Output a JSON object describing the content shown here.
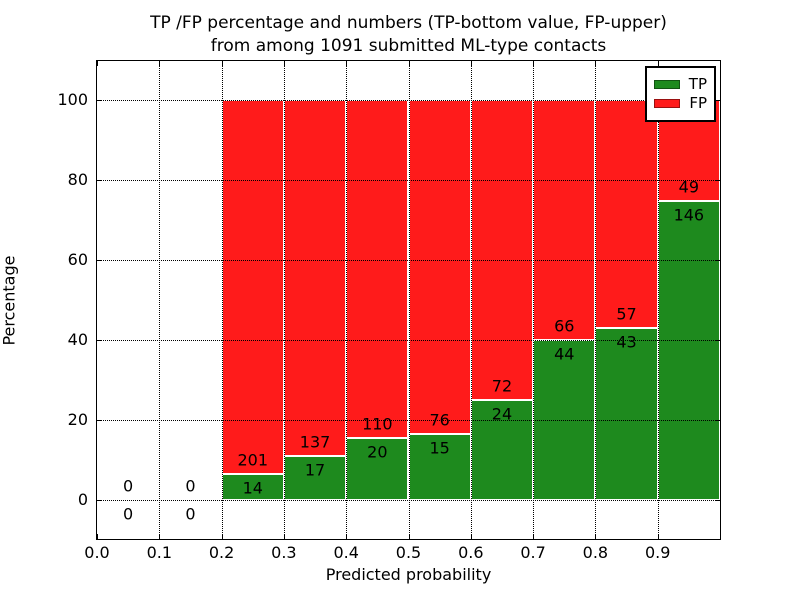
{
  "title_line1": "TP /FP percentage and numbers (TP-bottom value, FP-upper)",
  "title_line2": "from among 1091 submitted ML-type contacts",
  "total_contacts": 1091,
  "chart_data": {
    "type": "bar",
    "stacked": true,
    "title": "TP /FP percentage and numbers (TP-bottom value, FP-upper) from among 1091 submitted ML-type contacts",
    "xlabel": "Predicted probability",
    "ylabel": "Percentage",
    "x_tick_labels": [
      "0.0",
      "0.1",
      "0.2",
      "0.3",
      "0.4",
      "0.5",
      "0.6",
      "0.7",
      "0.8",
      "0.9"
    ],
    "x_tick_values": [
      0.0,
      0.1,
      0.2,
      0.3,
      0.4,
      0.5,
      0.6,
      0.7,
      0.8,
      0.9
    ],
    "y_tick_values": [
      0,
      20,
      40,
      60,
      80,
      100
    ],
    "xlim": [
      0.0,
      1.0
    ],
    "ylim": [
      -9.75,
      110
    ],
    "grid": true,
    "bin_width": 0.1,
    "categories": [
      "0.0-0.1",
      "0.1-0.2",
      "0.2-0.3",
      "0.3-0.4",
      "0.4-0.5",
      "0.5-0.6",
      "0.6-0.7",
      "0.7-0.8",
      "0.8-0.9",
      "0.9-1.0"
    ],
    "bins": [
      {
        "x_start": 0.0,
        "tp": 0,
        "fp": 0
      },
      {
        "x_start": 0.1,
        "tp": 0,
        "fp": 0
      },
      {
        "x_start": 0.2,
        "tp": 14,
        "fp": 201
      },
      {
        "x_start": 0.3,
        "tp": 17,
        "fp": 137
      },
      {
        "x_start": 0.4,
        "tp": 20,
        "fp": 110
      },
      {
        "x_start": 0.5,
        "tp": 15,
        "fp": 76
      },
      {
        "x_start": 0.6,
        "tp": 24,
        "fp": 72
      },
      {
        "x_start": 0.7,
        "tp": 44,
        "fp": 66
      },
      {
        "x_start": 0.8,
        "tp": 43,
        "fp": 57
      },
      {
        "x_start": 0.9,
        "tp": 146,
        "fp": 49
      }
    ],
    "series": [
      {
        "name": "TP",
        "color": "#1e8a1e",
        "values": [
          0,
          0,
          14,
          17,
          20,
          15,
          24,
          44,
          43,
          146
        ]
      },
      {
        "name": "FP",
        "color": "#ff1b1b",
        "values": [
          0,
          0,
          201,
          137,
          110,
          76,
          72,
          66,
          57,
          49
        ]
      }
    ],
    "legend": {
      "position": "upper right",
      "entries": [
        {
          "label": "TP",
          "color": "#1e8a1e"
        },
        {
          "label": "FP",
          "color": "#ff1b1b"
        }
      ]
    }
  }
}
